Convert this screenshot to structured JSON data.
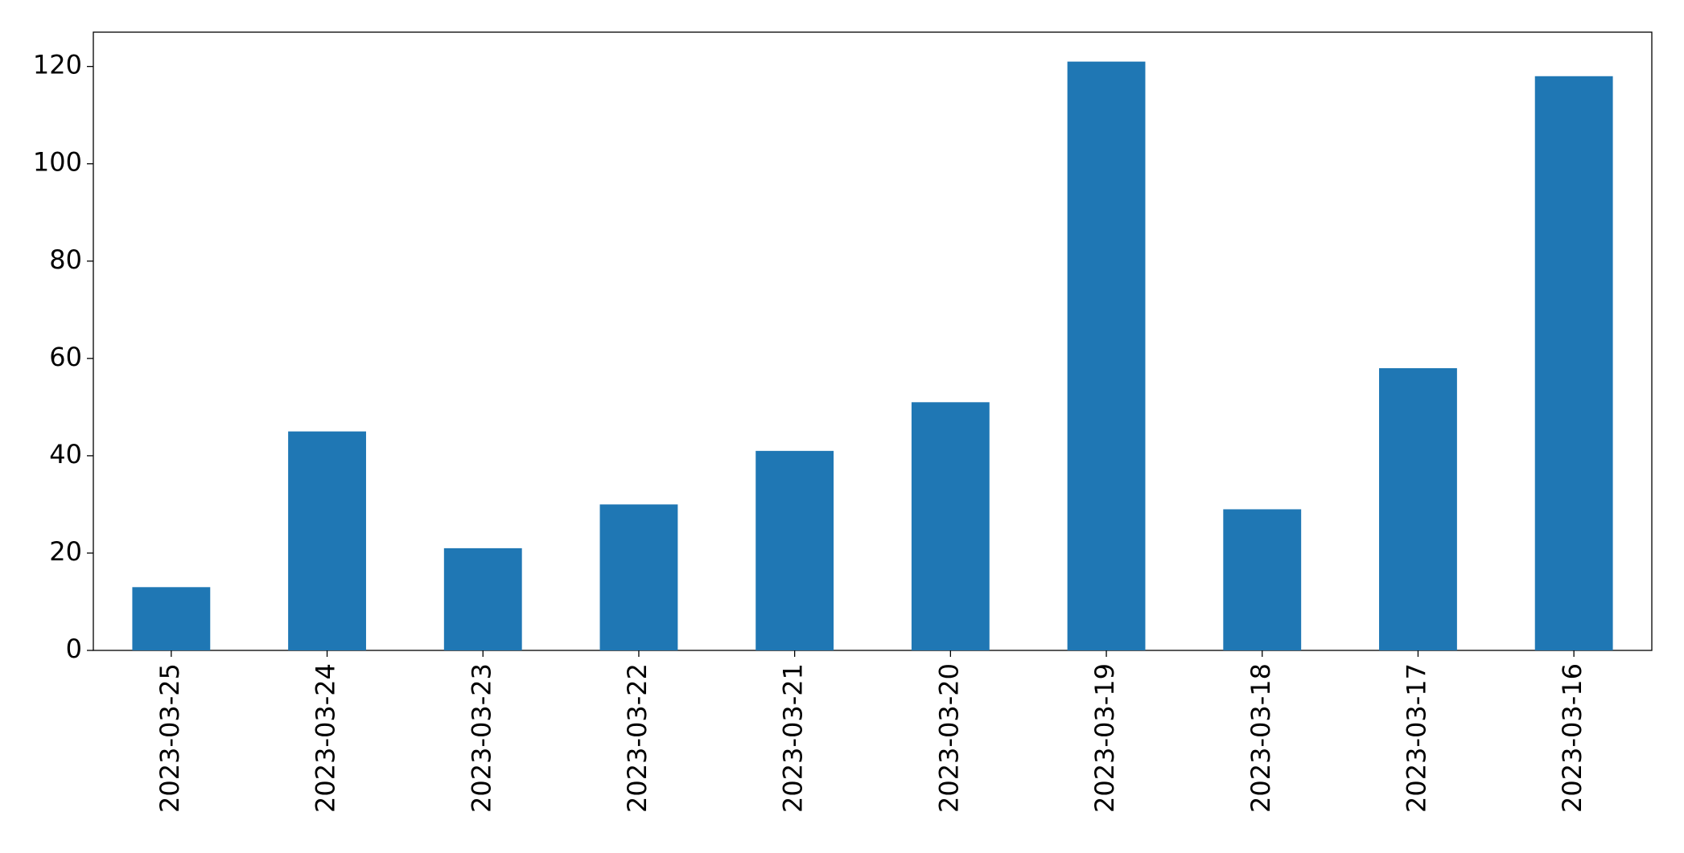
{
  "chart_data": {
    "type": "bar",
    "categories": [
      "2023-03-25",
      "2023-03-24",
      "2023-03-23",
      "2023-03-22",
      "2023-03-21",
      "2023-03-20",
      "2023-03-19",
      "2023-03-18",
      "2023-03-17",
      "2023-03-16"
    ],
    "values": [
      13,
      45,
      21,
      30,
      41,
      51,
      121,
      29,
      58,
      118
    ],
    "color": "#1f77b4",
    "ylim": [
      0,
      127.05
    ],
    "yticks": [
      0,
      20,
      40,
      60,
      80,
      100,
      120
    ],
    "grid": false
  }
}
